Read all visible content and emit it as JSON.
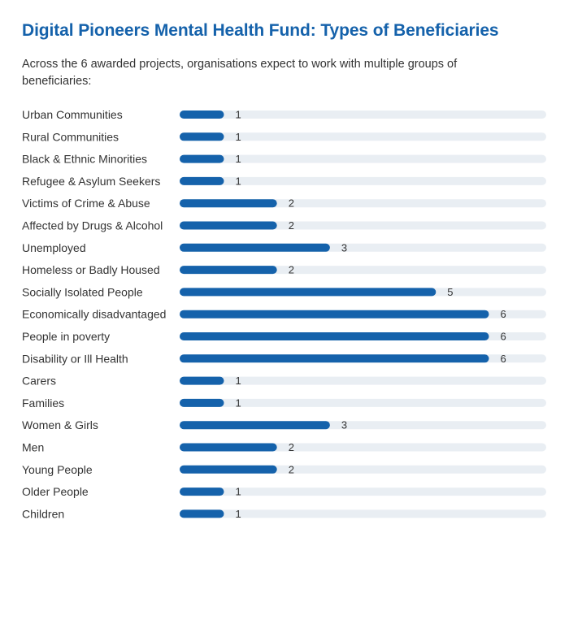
{
  "header": {
    "title": "Digital Pioneers Mental Health Fund: Types of Beneficiaries",
    "subtitle": "Across the 6 awarded projects, organisations expect to work with multiple groups of beneficiaries:"
  },
  "colors": {
    "bar": "#1562ab",
    "track": "#e9eef3",
    "title": "#1562ab",
    "text": "#333333"
  },
  "chart_data": {
    "type": "bar",
    "orientation": "horizontal",
    "title": "Digital Pioneers Mental Health Fund: Types of Beneficiaries",
    "subtitle": "Across the 6 awarded projects, organisations expect to work with multiple groups of beneficiaries:",
    "xlabel": "",
    "ylabel": "",
    "xlim": [
      0,
      7
    ],
    "grid": false,
    "legend": "none",
    "categories": [
      "Urban Communities",
      "Rural Communities",
      "Black & Ethnic Minorities",
      "Refugee & Asylum Seekers",
      "Victims of Crime & Abuse",
      "Affected by Drugs & Alcohol",
      "Unemployed",
      "Homeless or Badly Housed",
      "Socially Isolated People",
      "Economically disadvantaged",
      "People in poverty",
      "Disability or Ill Health",
      "Carers",
      "Families",
      "Women & Girls",
      "Men",
      "Young People",
      "Older People",
      "Children"
    ],
    "values": [
      1,
      1,
      1,
      1,
      2,
      2,
      3,
      2,
      5,
      6,
      6,
      6,
      1,
      1,
      3,
      2,
      2,
      1,
      1
    ]
  }
}
